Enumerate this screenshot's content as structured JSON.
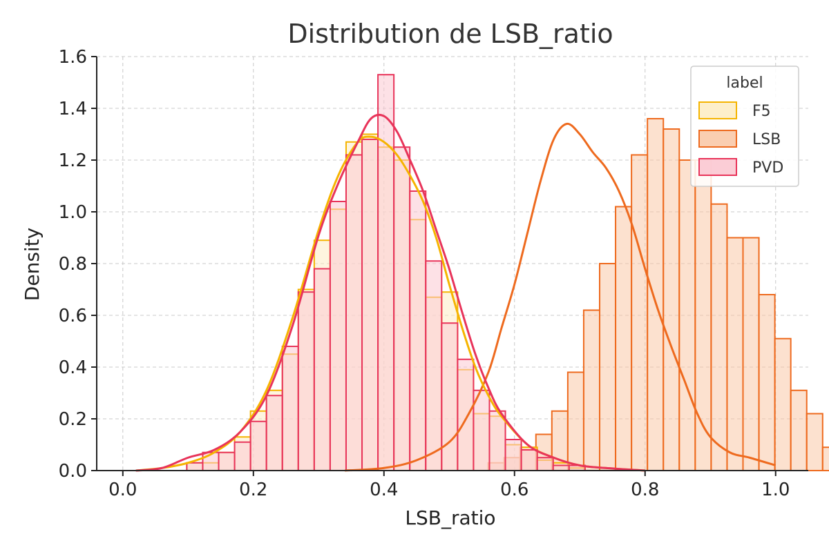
{
  "chart_data": {
    "type": "histogram",
    "title": "Distribution de LSB_ratio",
    "xlabel": "LSB_ratio",
    "ylabel": "Density",
    "xlim": [
      -0.04,
      1.05
    ],
    "ylim": [
      0,
      1.6
    ],
    "x_ticks": [
      "0.0",
      "0.2",
      "0.4",
      "0.6",
      "0.8",
      "1.0"
    ],
    "y_ticks": [
      "0.0",
      "0.2",
      "0.4",
      "0.6",
      "0.8",
      "1.0",
      "1.2",
      "1.4",
      "1.6"
    ],
    "grid": true,
    "legend": {
      "title": "label",
      "placement": "top-right"
    },
    "bin_width": 0.0244,
    "series": [
      {
        "name": "F5",
        "color": "#F5B400",
        "fill": "#FDEDC4",
        "bins_start": 0.098,
        "density": [
          0.03,
          0.03,
          0.07,
          0.13,
          0.23,
          0.31,
          0.45,
          0.7,
          0.89,
          1.01,
          1.27,
          1.3,
          1.25,
          1.2,
          0.97,
          0.67,
          0.69,
          0.39,
          0.22,
          0.21,
          0.1,
          0.09,
          0.04,
          0.03,
          0.01
        ],
        "kde_x": [
          0.02,
          0.06,
          0.1,
          0.14,
          0.18,
          0.22,
          0.26,
          0.3,
          0.33,
          0.36,
          0.38,
          0.4,
          0.42,
          0.44,
          0.46,
          0.48,
          0.5,
          0.52,
          0.54,
          0.56,
          0.58,
          0.62,
          0.66,
          0.7,
          0.74,
          0.8
        ],
        "kde_y": [
          0.0,
          0.01,
          0.03,
          0.07,
          0.15,
          0.31,
          0.59,
          0.93,
          1.14,
          1.27,
          1.29,
          1.27,
          1.22,
          1.14,
          1.04,
          0.9,
          0.72,
          0.55,
          0.4,
          0.29,
          0.21,
          0.1,
          0.05,
          0.02,
          0.01,
          0.0
        ]
      },
      {
        "name": "LSB",
        "color": "#EE6A1E",
        "fill": "#F9C9A8",
        "bins_start": 0.34,
        "density": [
          0.0,
          0.0,
          0.0,
          0.0,
          0.0,
          0.0,
          0.0,
          0.0,
          0.0,
          0.03,
          0.05,
          0.09,
          0.14,
          0.23,
          0.38,
          0.62,
          0.8,
          1.02,
          1.22,
          1.36,
          1.32,
          1.2,
          1.2,
          1.03,
          0.9,
          0.9,
          0.68,
          0.51,
          0.31,
          0.22,
          0.09,
          0.07,
          0.04,
          0.03,
          0.0
        ],
        "kde_x": [
          0.34,
          0.4,
          0.45,
          0.5,
          0.53,
          0.56,
          0.58,
          0.6,
          0.62,
          0.64,
          0.66,
          0.68,
          0.7,
          0.72,
          0.74,
          0.76,
          0.78,
          0.8,
          0.82,
          0.84,
          0.86,
          0.88,
          0.9,
          0.93,
          0.96,
          1.0
        ],
        "kde_y": [
          0.0,
          0.01,
          0.04,
          0.11,
          0.22,
          0.38,
          0.55,
          0.72,
          0.92,
          1.12,
          1.28,
          1.34,
          1.3,
          1.23,
          1.17,
          1.08,
          0.95,
          0.78,
          0.62,
          0.48,
          0.35,
          0.22,
          0.13,
          0.07,
          0.05,
          0.02
        ]
      },
      {
        "name": "PVD",
        "color": "#E8345A",
        "fill": "#FBC8D2",
        "bins_start": 0.098,
        "density": [
          0.03,
          0.07,
          0.07,
          0.11,
          0.19,
          0.29,
          0.48,
          0.69,
          0.78,
          1.04,
          1.22,
          1.28,
          1.53,
          1.25,
          1.08,
          0.81,
          0.57,
          0.43,
          0.31,
          0.23,
          0.12,
          0.08,
          0.05,
          0.02,
          0.02
        ],
        "kde_x": [
          0.02,
          0.06,
          0.1,
          0.14,
          0.18,
          0.22,
          0.26,
          0.3,
          0.33,
          0.36,
          0.38,
          0.4,
          0.42,
          0.44,
          0.46,
          0.48,
          0.5,
          0.52,
          0.54,
          0.56,
          0.58,
          0.62,
          0.66,
          0.7,
          0.74,
          0.8
        ],
        "kde_y": [
          0.0,
          0.01,
          0.05,
          0.08,
          0.15,
          0.29,
          0.56,
          0.91,
          1.11,
          1.27,
          1.36,
          1.37,
          1.31,
          1.2,
          1.08,
          0.93,
          0.78,
          0.61,
          0.45,
          0.32,
          0.22,
          0.1,
          0.05,
          0.02,
          0.01,
          0.0
        ]
      }
    ]
  }
}
